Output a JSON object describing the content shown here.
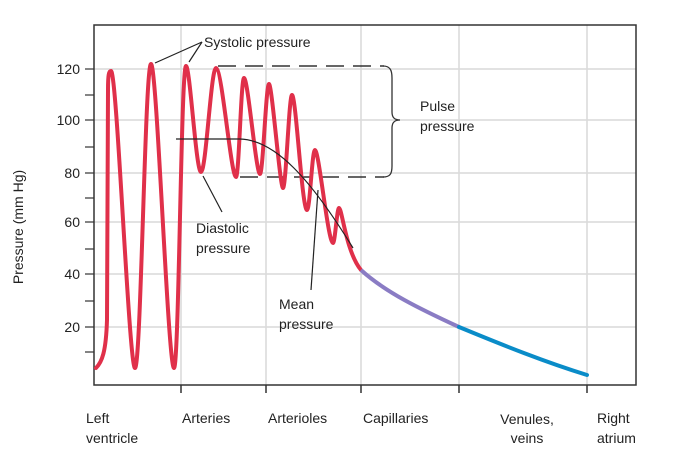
{
  "y_axis": {
    "label": "Pressure (mm Hg)",
    "ticks": [
      "120",
      "100",
      "80",
      "60",
      "40",
      "20"
    ]
  },
  "x_axis": {
    "categories": [
      {
        "line1": "Left",
        "line2": "ventricle"
      },
      {
        "line1": "Arteries",
        "line2": ""
      },
      {
        "line1": "Arterioles",
        "line2": ""
      },
      {
        "line1": "Capillaries",
        "line2": ""
      },
      {
        "line1": "Venules,",
        "line2": "veins"
      },
      {
        "line1": "Right",
        "line2": "atrium"
      }
    ]
  },
  "annotations": {
    "systolic": "Systolic pressure",
    "diastolic_1": "Diastolic",
    "diastolic_2": "pressure",
    "mean_1": "Mean",
    "mean_2": "pressure",
    "pulse_1": "Pulse",
    "pulse_2": "pressure"
  },
  "colors": {
    "arterial": "#e0304a",
    "capillary": "#8a7cc4",
    "venous": "#0a8cc8",
    "grid": "#d9d9d9"
  }
}
